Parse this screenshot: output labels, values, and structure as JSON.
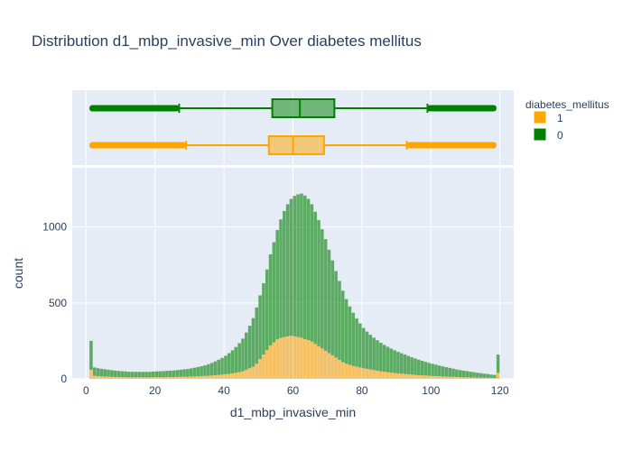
{
  "chart_data": {
    "type": "histogram",
    "title": "Distribution d1_mbp_invasive_min Over diabetes mellitus",
    "xlabel": "d1_mbp_invasive_min",
    "ylabel": "count",
    "xlim": [
      -4,
      124
    ],
    "ylim": [
      0,
      1390
    ],
    "x_ticks": [
      0,
      20,
      40,
      60,
      80,
      100,
      120
    ],
    "y_ticks": [
      0,
      500,
      1000
    ],
    "barmode": "stacked",
    "bin_width": 1,
    "legend": {
      "title": "diabetes_mellitus",
      "placement": "right"
    },
    "series": [
      {
        "name": "1",
        "color": "#FFA500",
        "bins_start": 1,
        "counts": [
          60,
          20,
          18,
          16,
          15,
          14,
          13,
          12,
          12,
          11,
          11,
          10,
          10,
          10,
          10,
          10,
          10,
          10,
          11,
          11,
          11,
          11,
          12,
          12,
          12,
          13,
          13,
          14,
          14,
          15,
          16,
          17,
          18,
          19,
          20,
          22,
          24,
          26,
          28,
          30,
          33,
          36,
          40,
          45,
          50,
          60,
          70,
          80,
          100,
          130,
          160,
          190,
          220,
          240,
          260,
          270,
          275,
          280,
          285,
          280,
          275,
          270,
          262,
          255,
          245,
          230,
          215,
          200,
          185,
          170,
          155,
          140,
          125,
          110,
          100,
          92,
          85,
          80,
          75,
          70,
          66,
          62,
          58,
          54,
          50,
          47,
          44,
          41,
          38,
          36,
          34,
          32,
          30,
          28,
          26,
          24,
          23,
          22,
          20,
          19,
          18,
          17,
          16,
          15,
          14,
          13,
          12,
          11,
          10,
          10,
          9,
          9,
          8,
          8,
          7,
          7,
          6,
          6,
          40
        ],
        "box": {
          "min": 1,
          "q1": 53,
          "median": 60,
          "q3": 69,
          "max": 119,
          "lower_fence": 29,
          "upper_fence": 93
        }
      },
      {
        "name": "0",
        "color": "#008000",
        "bins_start": 1,
        "counts": [
          190,
          55,
          52,
          50,
          48,
          46,
          44,
          42,
          40,
          39,
          38,
          37,
          36,
          36,
          36,
          36,
          36,
          36,
          37,
          38,
          39,
          40,
          41,
          42,
          43,
          45,
          47,
          49,
          51,
          54,
          57,
          61,
          65,
          70,
          76,
          83,
          91,
          100,
          110,
          122,
          136,
          152,
          170,
          190,
          215,
          245,
          280,
          320,
          370,
          420,
          470,
          530,
          600,
          660,
          720,
          780,
          830,
          870,
          900,
          925,
          940,
          950,
          945,
          930,
          905,
          870,
          830,
          785,
          735,
          680,
          625,
          570,
          520,
          470,
          425,
          385,
          350,
          318,
          290,
          265,
          245,
          228,
          213,
          200,
          188,
          177,
          167,
          158,
          150,
          142,
          135,
          128,
          121,
          114,
          108,
          102,
          96,
          90,
          85,
          80,
          75,
          70,
          66,
          62,
          58,
          54,
          50,
          47,
          44,
          41,
          38,
          35,
          32,
          29,
          27,
          25,
          22,
          20,
          120
        ],
        "box": {
          "min": 1,
          "q1": 54,
          "median": 62,
          "q3": 72,
          "max": 119,
          "lower_fence": 27,
          "upper_fence": 99
        }
      }
    ]
  }
}
